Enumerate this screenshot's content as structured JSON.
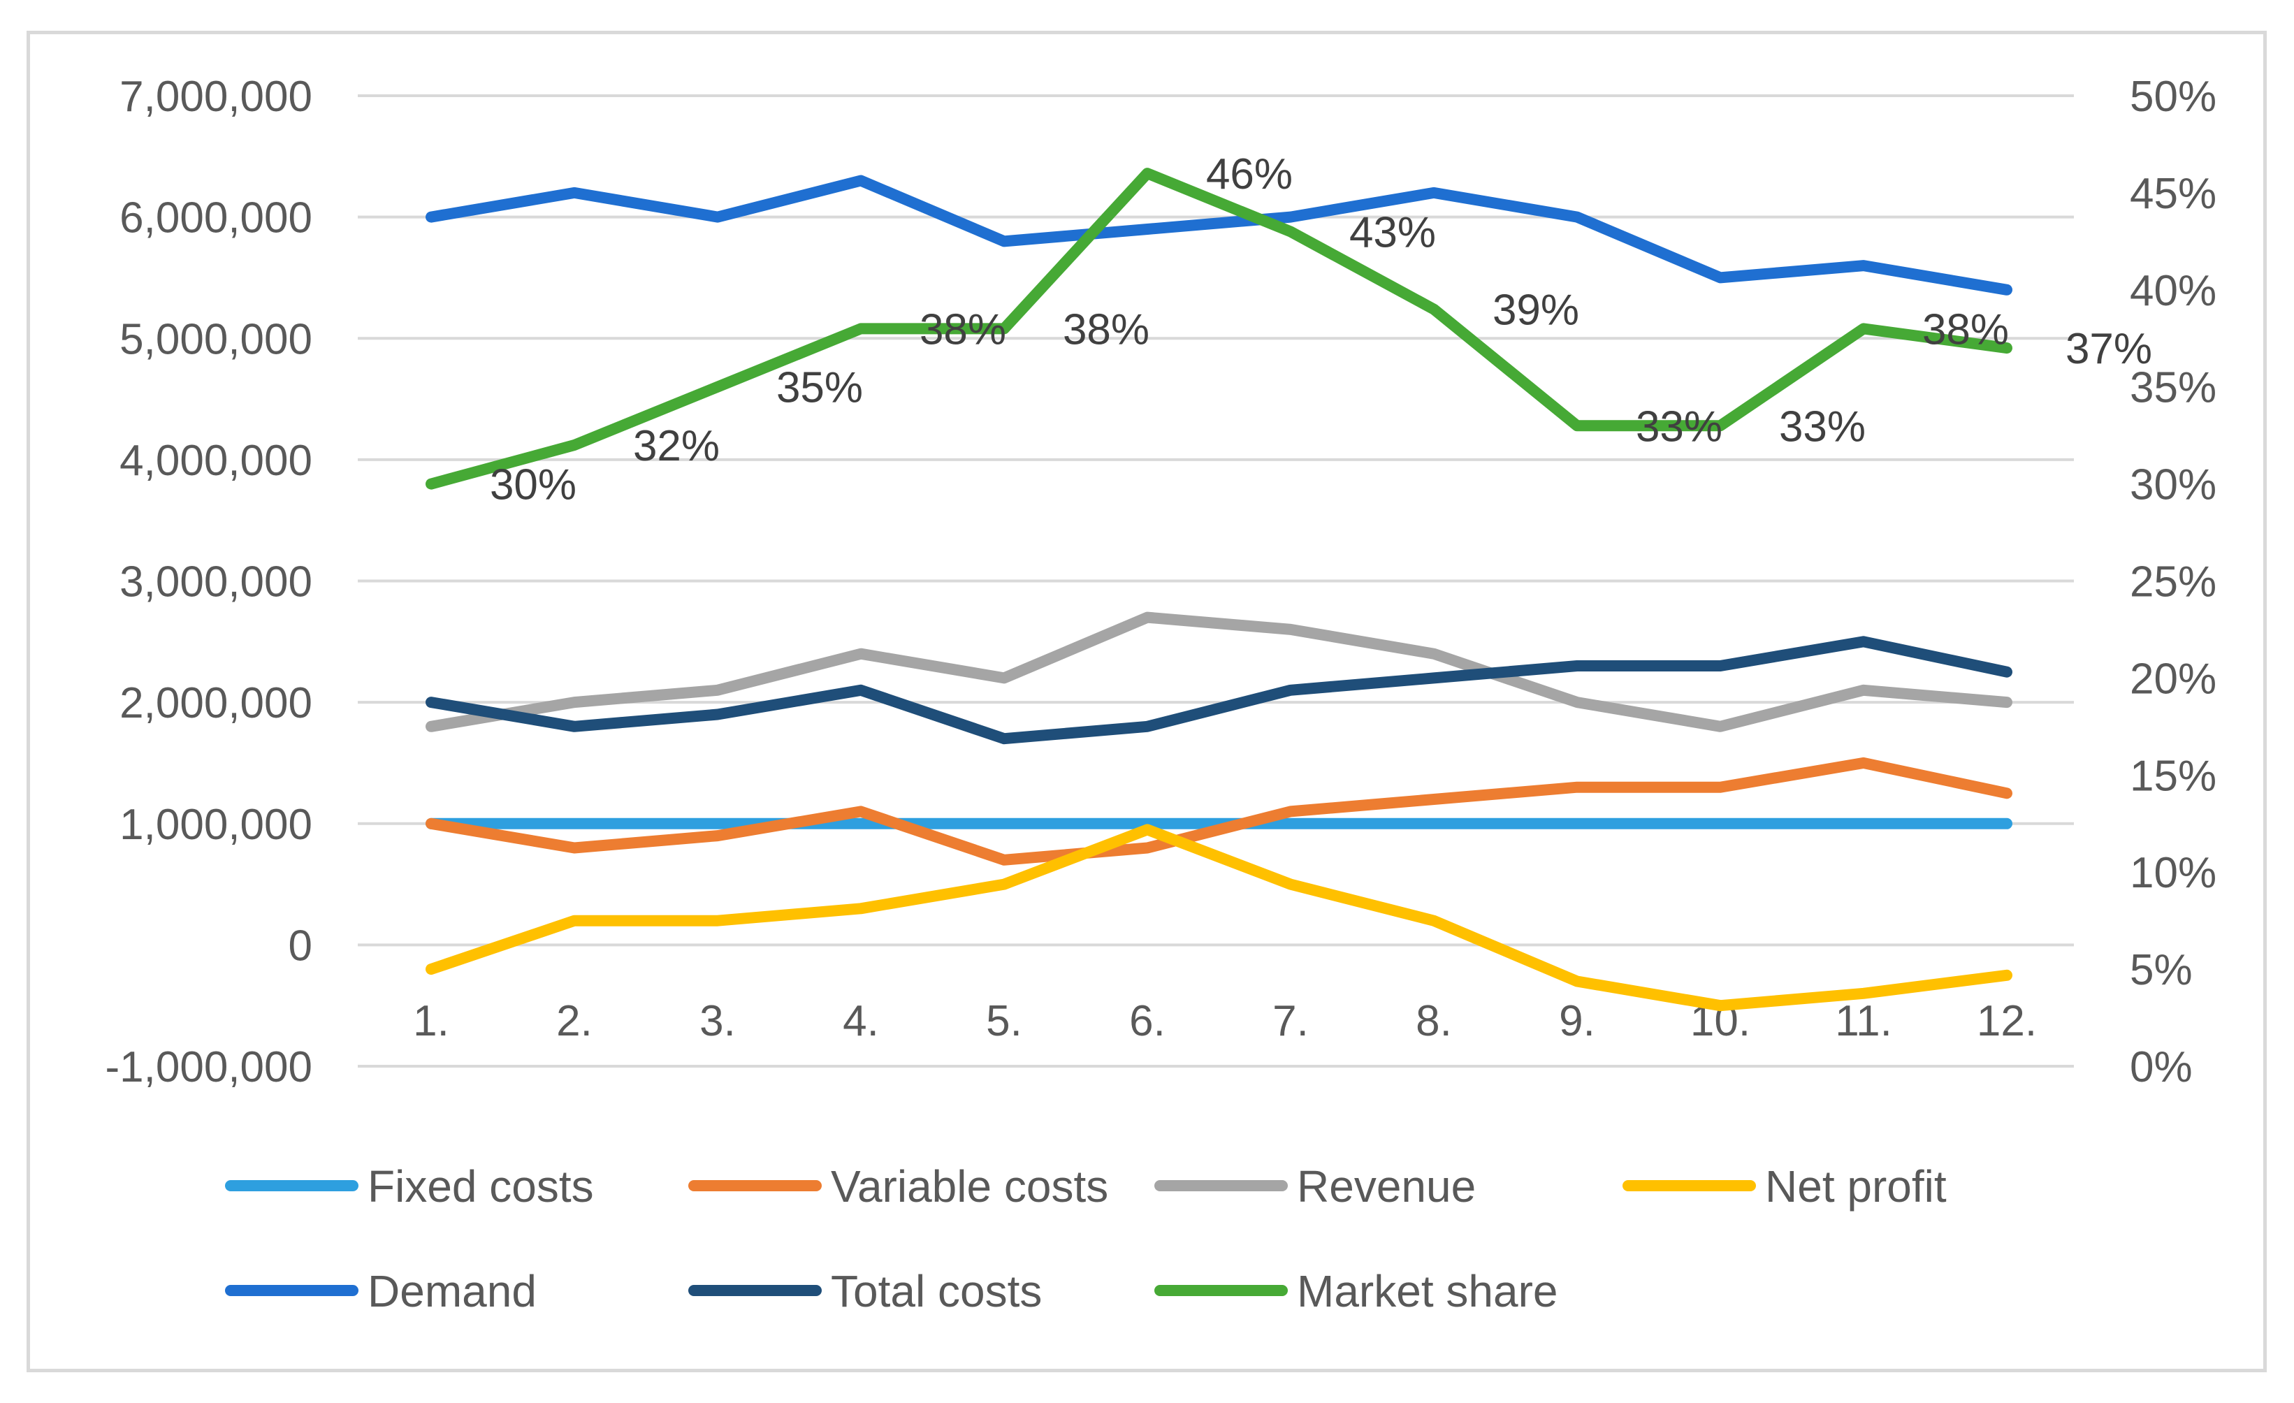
{
  "chart_data": {
    "type": "line",
    "categories": [
      "1.",
      "2.",
      "3.",
      "4.",
      "5.",
      "6.",
      "7.",
      "8.",
      "9.",
      "10.",
      "11.",
      "12."
    ],
    "y_primary": {
      "min": -1000000,
      "max": 7000000,
      "step": 1000000,
      "tick_labels": [
        "-1,000,000",
        "0",
        "1,000,000",
        "2,000,000",
        "3,000,000",
        "4,000,000",
        "5,000,000",
        "6,000,000",
        "7,000,000"
      ]
    },
    "y_secondary": {
      "min": 0,
      "max": 50,
      "step": 5,
      "tick_labels": [
        "0%",
        "5%",
        "10%",
        "15%",
        "20%",
        "25%",
        "30%",
        "35%",
        "40%",
        "45%",
        "50%"
      ]
    },
    "grid": true,
    "legend_position": "bottom",
    "series": [
      {
        "name": "Fixed costs",
        "color": "#2e9fdf",
        "axis": "primary",
        "values": [
          1000000,
          1000000,
          1000000,
          1000000,
          1000000,
          1000000,
          1000000,
          1000000,
          1000000,
          1000000,
          1000000,
          1000000
        ]
      },
      {
        "name": "Variable costs",
        "color": "#ed7d31",
        "axis": "primary",
        "values": [
          1000000,
          800000,
          900000,
          1100000,
          700000,
          800000,
          1100000,
          1200000,
          1300000,
          1300000,
          1500000,
          1250000
        ]
      },
      {
        "name": "Revenue",
        "color": "#a5a5a5",
        "axis": "primary",
        "values": [
          1800000,
          2000000,
          2100000,
          2400000,
          2200000,
          2700000,
          2600000,
          2400000,
          2000000,
          1800000,
          2100000,
          2000000
        ]
      },
      {
        "name": "Net profit",
        "color": "#ffc000",
        "axis": "primary",
        "values": [
          -200000,
          200000,
          200000,
          300000,
          500000,
          950000,
          500000,
          200000,
          -300000,
          -500000,
          -400000,
          -250000
        ]
      },
      {
        "name": "Demand",
        "color": "#1f6fd1",
        "axis": "primary",
        "values": [
          6000000,
          6200000,
          6000000,
          6300000,
          5800000,
          5900000,
          6000000,
          6200000,
          6000000,
          5500000,
          5600000,
          5400000
        ]
      },
      {
        "name": "Total costs",
        "color": "#1f4e79",
        "axis": "primary",
        "values": [
          2000000,
          1800000,
          1900000,
          2100000,
          1700000,
          1800000,
          2100000,
          2200000,
          2300000,
          2300000,
          2500000,
          2250000
        ]
      },
      {
        "name": "Market share",
        "color": "#46a935",
        "axis": "secondary",
        "values": [
          30,
          32,
          35,
          38,
          38,
          46,
          43,
          39,
          33,
          33,
          38,
          37
        ],
        "data_labels": [
          "30%",
          "32%",
          "35%",
          "38%",
          "38%",
          "46%",
          "43%",
          "39%",
          "33%",
          "33%",
          "38%",
          "37%"
        ]
      }
    ]
  }
}
